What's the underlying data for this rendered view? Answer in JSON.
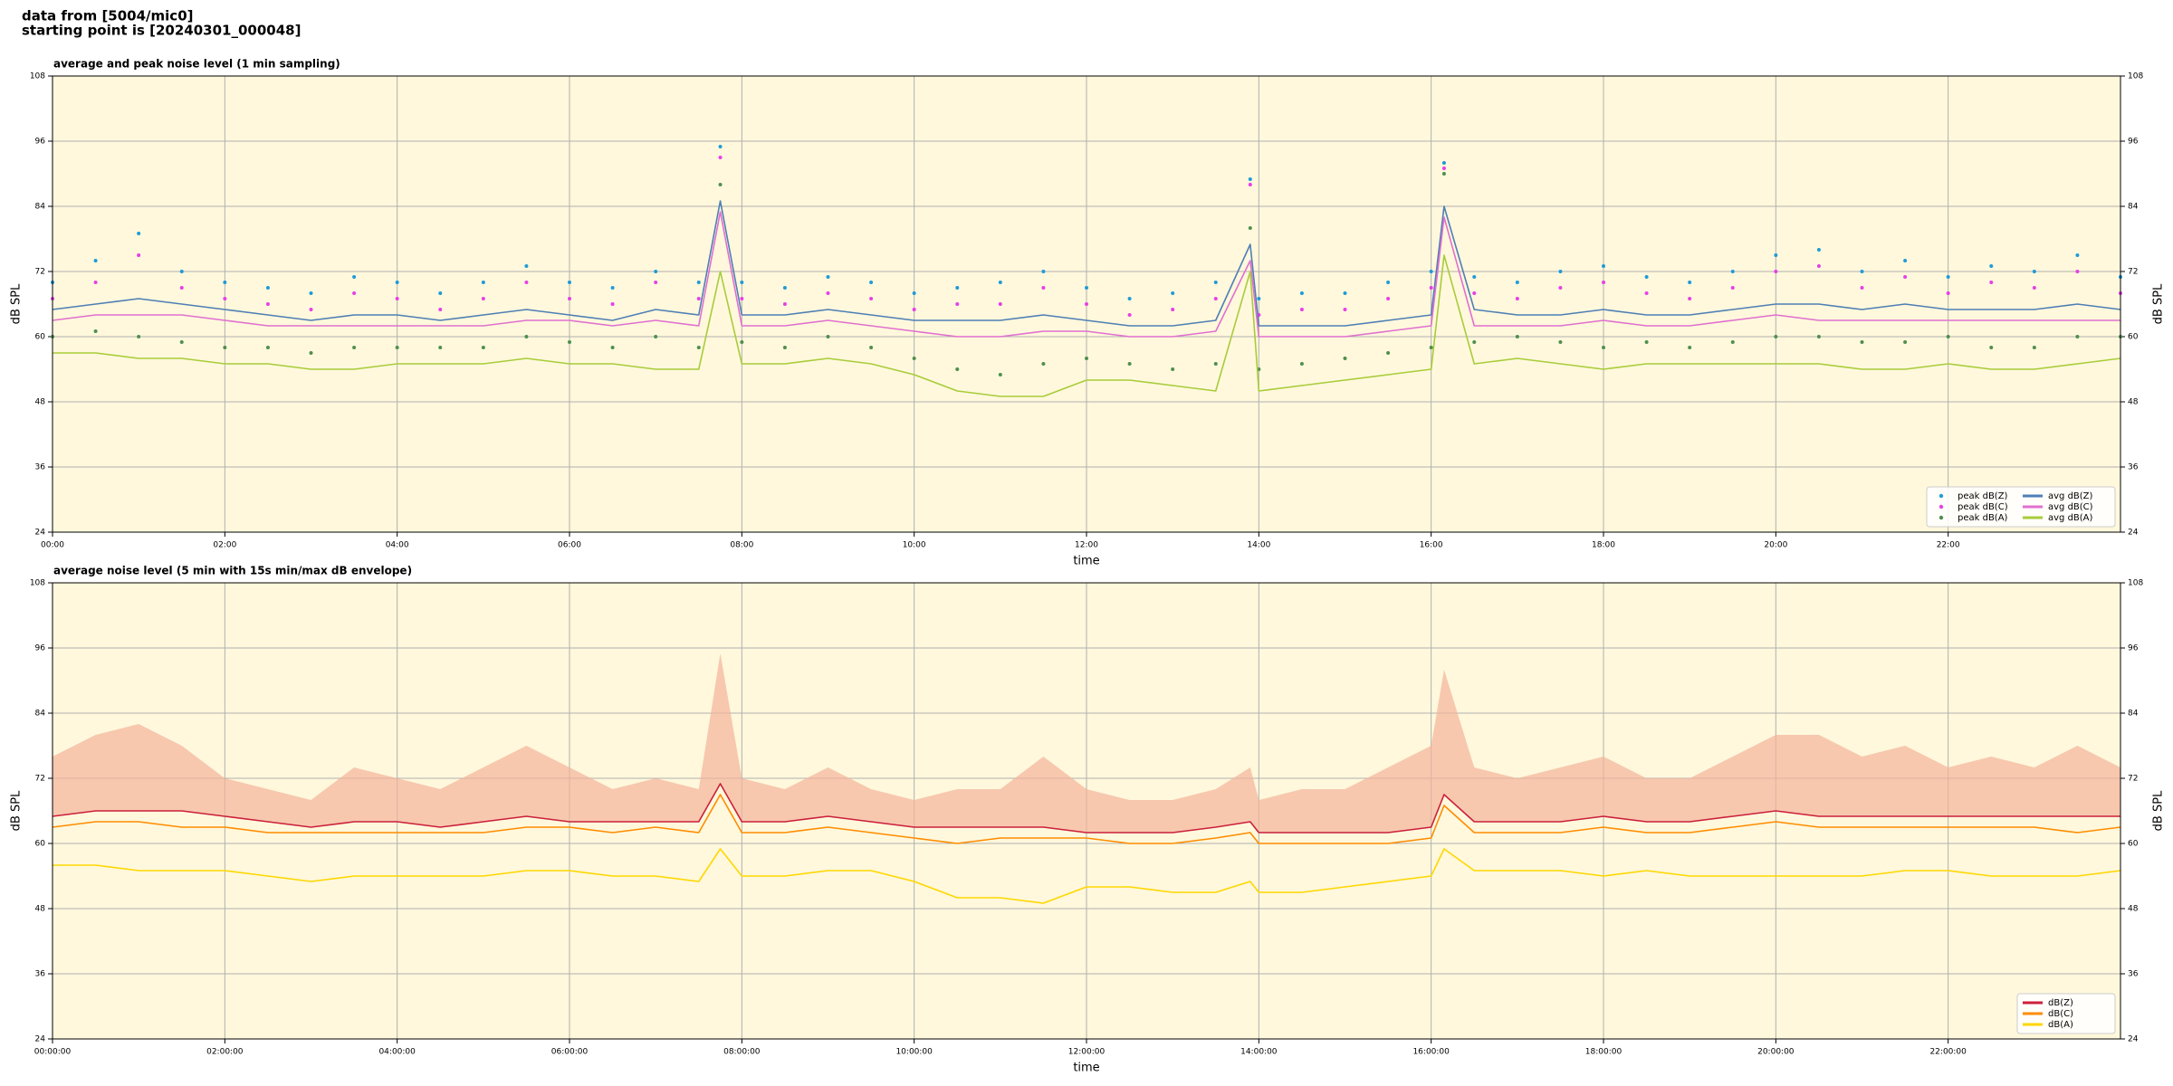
{
  "header": {
    "line1": "data from [5004/mic0]",
    "line2": "starting point is [20240301_000048]"
  },
  "chart_data": [
    {
      "type": "line",
      "title": "average and peak noise level (1 min sampling)",
      "xlabel": "time",
      "ylabel": "dB SPL",
      "x": [
        0,
        0.5,
        1,
        1.5,
        2,
        2.5,
        3,
        3.5,
        4,
        4.5,
        5,
        5.5,
        6,
        6.5,
        7,
        7.5,
        7.75,
        8,
        8.5,
        9,
        9.5,
        10,
        10.5,
        11,
        11.5,
        12,
        12.5,
        13,
        13.5,
        13.9,
        14,
        14.5,
        15,
        15.5,
        16,
        16.15,
        16.5,
        17,
        17.5,
        18,
        18.5,
        19,
        19.5,
        20,
        20.5,
        21,
        21.5,
        22,
        22.5,
        23,
        23.5,
        24
      ],
      "xlim": [
        0,
        24
      ],
      "xticks": [
        {
          "value": 0,
          "label": "00:00"
        },
        {
          "value": 2,
          "label": "02:00"
        },
        {
          "value": 4,
          "label": "04:00"
        },
        {
          "value": 6,
          "label": "06:00"
        },
        {
          "value": 8,
          "label": "08:00"
        },
        {
          "value": 10,
          "label": "10:00"
        },
        {
          "value": 12,
          "label": "12:00"
        },
        {
          "value": 14,
          "label": "14:00"
        },
        {
          "value": 16,
          "label": "16:00"
        },
        {
          "value": 18,
          "label": "18:00"
        },
        {
          "value": 20,
          "label": "20:00"
        },
        {
          "value": 22,
          "label": "22:00"
        }
      ],
      "ylim": [
        24,
        108
      ],
      "yticks": [
        24,
        36,
        48,
        60,
        72,
        84,
        96,
        108
      ],
      "grid": true,
      "legend": "lower right",
      "legend_columns": 2,
      "series": [
        {
          "name": "peak dB(Z)",
          "color": "#1f9bd8",
          "style": "scatter",
          "values": [
            70,
            74,
            79,
            72,
            70,
            69,
            68,
            71,
            70,
            68,
            70,
            73,
            70,
            69,
            72,
            70,
            95,
            70,
            69,
            71,
            70,
            68,
            69,
            70,
            72,
            69,
            67,
            68,
            70,
            89,
            67,
            68,
            68,
            70,
            72,
            92,
            71,
            70,
            72,
            73,
            71,
            70,
            72,
            75,
            76,
            72,
            74,
            71,
            73,
            72,
            75,
            71
          ]
        },
        {
          "name": "peak dB(C)",
          "color": "#e83ee8",
          "style": "scatter",
          "values": [
            67,
            70,
            75,
            69,
            67,
            66,
            65,
            68,
            67,
            65,
            67,
            70,
            67,
            66,
            70,
            67,
            93,
            67,
            66,
            68,
            67,
            65,
            66,
            66,
            69,
            66,
            64,
            65,
            67,
            88,
            64,
            65,
            65,
            67,
            69,
            91,
            68,
            67,
            69,
            70,
            68,
            67,
            69,
            72,
            73,
            69,
            71,
            68,
            70,
            69,
            72,
            68
          ]
        },
        {
          "name": "peak dB(A)",
          "color": "#4f8f4f",
          "style": "scatter",
          "values": [
            60,
            61,
            60,
            59,
            58,
            58,
            57,
            58,
            58,
            58,
            58,
            60,
            59,
            58,
            60,
            58,
            88,
            59,
            58,
            60,
            58,
            56,
            54,
            53,
            55,
            56,
            55,
            54,
            55,
            80,
            54,
            55,
            56,
            57,
            58,
            90,
            59,
            60,
            59,
            58,
            59,
            58,
            59,
            60,
            60,
            59,
            59,
            60,
            58,
            58,
            60,
            60
          ]
        },
        {
          "name": "avg dB(Z)",
          "color": "#4e7fb5",
          "style": "line",
          "values": [
            65,
            66,
            67,
            66,
            65,
            64,
            63,
            64,
            64,
            63,
            64,
            65,
            64,
            63,
            65,
            64,
            85,
            64,
            64,
            65,
            64,
            63,
            63,
            63,
            64,
            63,
            62,
            62,
            63,
            77,
            62,
            62,
            62,
            63,
            64,
            84,
            65,
            64,
            64,
            65,
            64,
            64,
            65,
            66,
            66,
            65,
            66,
            65,
            65,
            65,
            66,
            65
          ]
        },
        {
          "name": "avg dB(C)",
          "color": "#e070d0",
          "style": "line",
          "values": [
            63,
            64,
            64,
            64,
            63,
            62,
            62,
            62,
            62,
            62,
            62,
            63,
            63,
            62,
            63,
            62,
            83,
            62,
            62,
            63,
            62,
            61,
            60,
            60,
            61,
            61,
            60,
            60,
            61,
            74,
            60,
            60,
            60,
            61,
            62,
            82,
            62,
            62,
            62,
            63,
            62,
            62,
            63,
            64,
            63,
            63,
            63,
            63,
            63,
            63,
            63,
            63
          ]
        },
        {
          "name": "avg dB(A)",
          "color": "#a8cc3a",
          "style": "line",
          "values": [
            57,
            57,
            56,
            56,
            55,
            55,
            54,
            54,
            55,
            55,
            55,
            56,
            55,
            55,
            54,
            54,
            72,
            55,
            55,
            56,
            55,
            53,
            50,
            49,
            49,
            52,
            52,
            51,
            50,
            72,
            50,
            51,
            52,
            53,
            54,
            75,
            55,
            56,
            55,
            54,
            55,
            55,
            55,
            55,
            55,
            54,
            54,
            55,
            54,
            54,
            55,
            56
          ]
        }
      ]
    },
    {
      "type": "line",
      "title": "average noise level (5 min with 15s min/max dB envelope)",
      "xlabel": "time",
      "ylabel": "dB SPL",
      "x": [
        0,
        0.5,
        1,
        1.5,
        2,
        2.5,
        3,
        3.5,
        4,
        4.5,
        5,
        5.5,
        6,
        6.5,
        7,
        7.5,
        7.75,
        8,
        8.5,
        9,
        9.5,
        10,
        10.5,
        11,
        11.5,
        12,
        12.5,
        13,
        13.5,
        13.9,
        14,
        14.5,
        15,
        15.5,
        16,
        16.15,
        16.5,
        17,
        17.5,
        18,
        18.5,
        19,
        19.5,
        20,
        20.5,
        21,
        21.5,
        22,
        22.5,
        23,
        23.5,
        24
      ],
      "xlim": [
        0,
        24
      ],
      "xticks": [
        {
          "value": 0,
          "label": "00:00:00"
        },
        {
          "value": 2,
          "label": "02:00:00"
        },
        {
          "value": 4,
          "label": "04:00:00"
        },
        {
          "value": 6,
          "label": "06:00:00"
        },
        {
          "value": 8,
          "label": "08:00:00"
        },
        {
          "value": 10,
          "label": "10:00:00"
        },
        {
          "value": 12,
          "label": "12:00:00"
        },
        {
          "value": 14,
          "label": "14:00:00"
        },
        {
          "value": 16,
          "label": "16:00:00"
        },
        {
          "value": 18,
          "label": "18:00:00"
        },
        {
          "value": 20,
          "label": "20:00:00"
        },
        {
          "value": 22,
          "label": "22:00:00"
        }
      ],
      "ylim": [
        24,
        108
      ],
      "yticks": [
        24,
        36,
        48,
        60,
        72,
        84,
        96,
        108
      ],
      "grid": true,
      "legend": "lower right",
      "legend_columns": 1,
      "series": [
        {
          "name": "dB(Z)",
          "color": "#cc1f3c",
          "style": "line",
          "envelope_color": "#f4b39a",
          "values": [
            65,
            66,
            66,
            66,
            65,
            64,
            63,
            64,
            64,
            63,
            64,
            65,
            64,
            64,
            64,
            64,
            71,
            64,
            64,
            65,
            64,
            63,
            63,
            63,
            63,
            62,
            62,
            62,
            63,
            64,
            62,
            62,
            62,
            62,
            63,
            69,
            64,
            64,
            64,
            65,
            64,
            64,
            65,
            66,
            65,
            65,
            65,
            65,
            65,
            65,
            65,
            65
          ],
          "max": [
            76,
            80,
            82,
            78,
            72,
            70,
            68,
            74,
            72,
            70,
            74,
            78,
            74,
            70,
            72,
            70,
            95,
            72,
            70,
            74,
            70,
            68,
            70,
            70,
            76,
            70,
            68,
            68,
            70,
            74,
            68,
            70,
            70,
            74,
            78,
            92,
            74,
            72,
            74,
            76,
            72,
            72,
            76,
            80,
            80,
            76,
            78,
            74,
            76,
            74,
            78,
            74
          ]
        },
        {
          "name": "dB(C)",
          "color": "#ff8c00",
          "style": "line",
          "values": [
            63,
            64,
            64,
            63,
            63,
            62,
            62,
            62,
            62,
            62,
            62,
            63,
            63,
            62,
            63,
            62,
            69,
            62,
            62,
            63,
            62,
            61,
            60,
            61,
            61,
            61,
            60,
            60,
            61,
            62,
            60,
            60,
            60,
            60,
            61,
            67,
            62,
            62,
            62,
            63,
            62,
            62,
            63,
            64,
            63,
            63,
            63,
            63,
            63,
            63,
            62,
            63
          ]
        },
        {
          "name": "dB(A)",
          "color": "#ffd700",
          "style": "line",
          "values": [
            56,
            56,
            55,
            55,
            55,
            54,
            53,
            54,
            54,
            54,
            54,
            55,
            55,
            54,
            54,
            53,
            59,
            54,
            54,
            55,
            55,
            53,
            50,
            50,
            49,
            52,
            52,
            51,
            51,
            53,
            51,
            51,
            52,
            53,
            54,
            59,
            55,
            55,
            55,
            54,
            55,
            54,
            54,
            54,
            54,
            54,
            55,
            55,
            54,
            54,
            54,
            55
          ]
        }
      ]
    }
  ]
}
